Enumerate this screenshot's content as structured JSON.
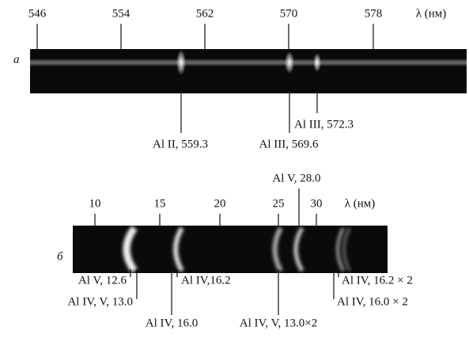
{
  "panels": [
    {
      "label": "а",
      "ticks": [
        "546",
        "554",
        "562",
        "570",
        "578"
      ],
      "axis_label": "λ (нм)",
      "annotations": [
        "Al II, 559.3",
        "Al III, 569.6",
        "Al III, 572.3"
      ]
    },
    {
      "label": "б",
      "ticks": [
        "10",
        "15",
        "20",
        "25",
        "30"
      ],
      "axis_label": "λ (нм)",
      "annotations": [
        "Al V, 28.0",
        "Al V, 12.6",
        "Al IV, V, 13.0",
        "Al IV, 16.0",
        "Al IV,16.2",
        "Al IV, V, 13.0×2",
        "Al IV, 16.2 × 2",
        "Al IV, 16.0 × 2"
      ]
    }
  ]
}
